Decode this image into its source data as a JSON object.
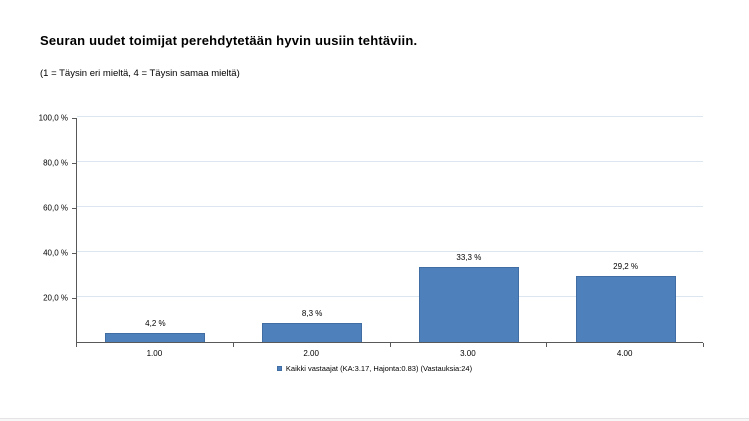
{
  "chart_data": {
    "type": "bar",
    "title": "Seuran uudet toimijat perehdytetään hyvin uusiin tehtäviin.",
    "subtitle": "(1 = Täysin eri mieltä, 4 = Täysin samaa mieltä)",
    "categories": [
      "1.00",
      "2.00",
      "3.00",
      "4.00"
    ],
    "values": [
      4.2,
      8.3,
      33.3,
      29.2
    ],
    "value_labels": [
      "4,2 %",
      "8,3 %",
      "33,3 %",
      "29,2 %"
    ],
    "y_ticks": [
      {
        "value": 20,
        "label": "20,0 %"
      },
      {
        "value": 40,
        "label": "40,0 %"
      },
      {
        "value": 60,
        "label": "60,0 %"
      },
      {
        "value": 80,
        "label": "80,0 %"
      },
      {
        "value": 100,
        "label": "100,0 %"
      }
    ],
    "ylim": [
      0,
      100
    ],
    "grid": true,
    "legend": {
      "position": "bottom",
      "label": "Kaikki vastaajat (KA:3.17, Hajonta:0.83) (Vastauksia:24)"
    },
    "colors": {
      "bar": "#4e81bc",
      "bar_border": "#406da3",
      "gridline": "#dce6f1",
      "axis": "#595959",
      "text": "#000000"
    }
  }
}
